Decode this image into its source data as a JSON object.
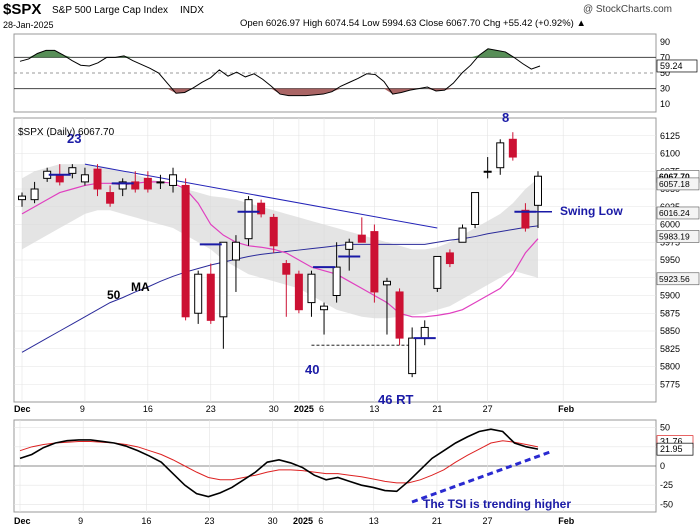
{
  "header": {
    "symbol": "$SPX",
    "name": "S&P 500 Large Cap Index",
    "exchange": "INDX",
    "date": "28-Jan-2025",
    "watermark": "@ StockCharts.com",
    "ohlc_text": "Open 6026.97  High 6074.54  Low 5994.63  Close 6067.70  Chg +55.42 (+0.92%) ▲"
  },
  "colors": {
    "up": "#000000",
    "down": "#cc1133",
    "ma_fast": "#e040c0",
    "ma_slow": "#2a2a9a",
    "band": "#d8d8d8",
    "annot": "#1a1aa6",
    "tsi": "#000000",
    "signal": "#dd2222",
    "rsi_fill_up": "#3a7a3a",
    "rsi_fill_down": "#9b4a4a"
  },
  "chart_data": [
    {
      "type": "line",
      "panel": "rsi",
      "ylim": [
        0,
        100
      ],
      "y_ticks": [
        10,
        30,
        50,
        70,
        90
      ],
      "ref_lines": [
        30,
        50,
        70
      ],
      "value_label": "59.24",
      "values": [
        65,
        68,
        75,
        79,
        79,
        73,
        66,
        60,
        59,
        63,
        70,
        70,
        72,
        66,
        61,
        56,
        50,
        37,
        24,
        25,
        31,
        38,
        44,
        54,
        46,
        51,
        45,
        49,
        42,
        33,
        23,
        21,
        21,
        21,
        22,
        23,
        26,
        33,
        38,
        43,
        49,
        48,
        39,
        23,
        25,
        28,
        30,
        32,
        27,
        28,
        37,
        50,
        60,
        73,
        81,
        79,
        77,
        70,
        62,
        55,
        59
      ]
    },
    {
      "type": "candlestick",
      "panel": "price",
      "label": "$SPX (Daily) 6067.70",
      "ylim": [
        5750,
        6150
      ],
      "y_ticks": [
        5775,
        5800,
        5825,
        5850,
        5875,
        5900,
        5925,
        5950,
        5975,
        6000,
        6025,
        6050,
        6075,
        6100,
        6125
      ],
      "x_ticks": [
        "Dec",
        "9",
        "16",
        "23",
        "30",
        "2025",
        "6",
        "13",
        "21",
        "27",
        "Feb"
      ],
      "tick_index": [
        0,
        5,
        10,
        15,
        20,
        22,
        24,
        28,
        33,
        37,
        43
      ],
      "candles": [
        {
          "o": 6035,
          "h": 6045,
          "l": 6025,
          "c": 6040
        },
        {
          "o": 6035,
          "h": 6060,
          "l": 6030,
          "c": 6050
        },
        {
          "o": 6065,
          "h": 6080,
          "l": 6060,
          "c": 6075
        },
        {
          "o": 6070,
          "h": 6085,
          "l": 6055,
          "c": 6060
        },
        {
          "o": 6072,
          "h": 6085,
          "l": 6065,
          "c": 6080
        },
        {
          "o": 6060,
          "h": 6080,
          "l": 6055,
          "c": 6070
        },
        {
          "o": 6078,
          "h": 6085,
          "l": 6040,
          "c": 6050
        },
        {
          "o": 6045,
          "h": 6055,
          "l": 6025,
          "c": 6030
        },
        {
          "o": 6050,
          "h": 6065,
          "l": 6040,
          "c": 6060
        },
        {
          "o": 6060,
          "h": 6075,
          "l": 6045,
          "c": 6050
        },
        {
          "o": 6065,
          "h": 6075,
          "l": 6045,
          "c": 6050
        },
        {
          "o": 6060,
          "h": 6070,
          "l": 6050,
          "c": 6060
        },
        {
          "o": 6055,
          "h": 6080,
          "l": 6045,
          "c": 6070
        },
        {
          "o": 6055,
          "h": 6065,
          "l": 5865,
          "c": 5870
        },
        {
          "o": 5875,
          "h": 5935,
          "l": 5860,
          "c": 5930
        },
        {
          "o": 5930,
          "h": 5945,
          "l": 5860,
          "c": 5865
        },
        {
          "o": 5870,
          "h": 5975,
          "l": 5825,
          "c": 5975
        },
        {
          "o": 5950,
          "h": 5985,
          "l": 5905,
          "c": 5975
        },
        {
          "o": 5980,
          "h": 6040,
          "l": 5970,
          "c": 6035
        },
        {
          "o": 6030,
          "h": 6035,
          "l": 6010,
          "c": 6015
        },
        {
          "o": 6010,
          "h": 6015,
          "l": 5960,
          "c": 5970
        },
        {
          "o": 5945,
          "h": 5950,
          "l": 5870,
          "c": 5930
        },
        {
          "o": 5930,
          "h": 5935,
          "l": 5875,
          "c": 5880
        },
        {
          "o": 5890,
          "h": 5935,
          "l": 5870,
          "c": 5930
        },
        {
          "o": 5880,
          "h": 5890,
          "l": 5845,
          "c": 5885
        },
        {
          "o": 5900,
          "h": 5975,
          "l": 5890,
          "c": 5940
        },
        {
          "o": 5965,
          "h": 5980,
          "l": 5935,
          "c": 5975
        },
        {
          "o": 5985,
          "h": 6010,
          "l": 5975,
          "c": 5975
        },
        {
          "o": 5990,
          "h": 6000,
          "l": 5890,
          "c": 5905
        },
        {
          "o": 5915,
          "h": 5925,
          "l": 5845,
          "c": 5920
        },
        {
          "o": 5905,
          "h": 5910,
          "l": 5830,
          "c": 5840
        },
        {
          "o": 5790,
          "h": 5855,
          "l": 5785,
          "c": 5840
        },
        {
          "o": 5840,
          "h": 5865,
          "l": 5830,
          "c": 5855
        },
        {
          "o": 5910,
          "h": 5955,
          "l": 5905,
          "c": 5955
        },
        {
          "o": 5960,
          "h": 5965,
          "l": 5940,
          "c": 5945
        },
        {
          "o": 5975,
          "h": 6000,
          "l": 5975,
          "c": 5995
        },
        {
          "o": 6000,
          "h": 6045,
          "l": 5995,
          "c": 6045
        },
        {
          "o": 6075,
          "h": 6095,
          "l": 6065,
          "c": 6075
        },
        {
          "o": 6080,
          "h": 6120,
          "l": 6070,
          "c": 6115
        },
        {
          "o": 6120,
          "h": 6130,
          "l": 6090,
          "c": 6095
        },
        {
          "o": 6020,
          "h": 6030,
          "l": 5990,
          "c": 5995
        },
        {
          "o": 6027,
          "h": 6075,
          "l": 5995,
          "c": 6068
        }
      ],
      "ma20": [
        6015,
        6025,
        6035,
        6045,
        6050,
        6055,
        6058,
        6058,
        6056,
        6058,
        6060,
        6060,
        6058,
        6050,
        6030,
        6000,
        5985,
        5975,
        5970,
        5968,
        5965,
        5960,
        5950,
        5940,
        5935,
        5930,
        5920,
        5910,
        5900,
        5890,
        5875,
        5870,
        5870,
        5872,
        5875,
        5880,
        5890,
        5900,
        5910,
        5930,
        5960,
        5980
      ],
      "ma50": [
        5820,
        5830,
        5840,
        5850,
        5860,
        5870,
        5880,
        5890,
        5897,
        5905,
        5912,
        5920,
        5927,
        5933,
        5938,
        5943,
        5947,
        5951,
        5955,
        5958,
        5960,
        5962,
        5964,
        5966,
        5968,
        5970,
        5972,
        5972,
        5972,
        5972,
        5972,
        5972,
        5972,
        5975,
        5978,
        5980,
        5983,
        5987,
        5990,
        5993,
        5996,
        5998
      ],
      "band_upper": [
        6065,
        6075,
        6080,
        6085,
        6085,
        6085,
        6083,
        6080,
        6075,
        6070,
        6065,
        6060,
        6055,
        6050,
        6045,
        6040,
        6038,
        6035,
        6030,
        6025,
        6020,
        6015,
        6010,
        6005,
        6000,
        5995,
        5990,
        5985,
        5980,
        5975,
        5970,
        5965,
        5965,
        5968,
        5975,
        5985,
        5995,
        6005,
        6015,
        6030,
        6050,
        6065
      ],
      "band_lower": [
        5965,
        5975,
        5985,
        5995,
        6005,
        6015,
        6020,
        6020,
        6015,
        6010,
        6005,
        6000,
        5995,
        5985,
        5975,
        5965,
        5950,
        5940,
        5930,
        5925,
        5920,
        5915,
        5910,
        5900,
        5890,
        5880,
        5875,
        5870,
        5868,
        5868,
        5870,
        5872,
        5875,
        5880,
        5885,
        5895,
        5905,
        5915,
        5925,
        5935,
        5930,
        5925
      ],
      "price_labels": [
        "6067.70",
        "6057.18",
        "6016.24",
        "5983.19",
        "5923.56"
      ],
      "annotations": {
        "swing_low": "Swing Low",
        "num_23": "23",
        "num_8": "8",
        "num_40": "40",
        "num_46": "46 RT",
        "ma_label_num": "50",
        "ma_label_txt": "MA"
      }
    },
    {
      "type": "line",
      "panel": "tsi",
      "ylim": [
        -60,
        60
      ],
      "y_ticks": [
        -50,
        -25,
        0,
        25,
        50
      ],
      "value_labels": [
        "31.76",
        "21.95"
      ],
      "tsi": [
        10,
        15,
        24,
        30,
        33,
        34,
        34,
        32,
        30,
        26,
        20,
        13,
        5,
        -10,
        -25,
        -36,
        -40,
        -35,
        -28,
        -18,
        -8,
        5,
        8,
        4,
        -2,
        -12,
        -18,
        -15,
        -20,
        -25,
        -28,
        -32,
        -33,
        -20,
        -5,
        10,
        20,
        30,
        38,
        45,
        48,
        45,
        30,
        25,
        22
      ],
      "signal": [
        20,
        25,
        28,
        30,
        31,
        32,
        32,
        31,
        30,
        28,
        25,
        20,
        15,
        8,
        0,
        -8,
        -15,
        -18,
        -18,
        -15,
        -12,
        -8,
        -5,
        -5,
        -6,
        -8,
        -10,
        -10,
        -12,
        -14,
        -17,
        -20,
        -22,
        -22,
        -18,
        -12,
        -5,
        5,
        14,
        22,
        30,
        33,
        31,
        28,
        25
      ],
      "annotation": "The TSI is trending higher"
    }
  ]
}
